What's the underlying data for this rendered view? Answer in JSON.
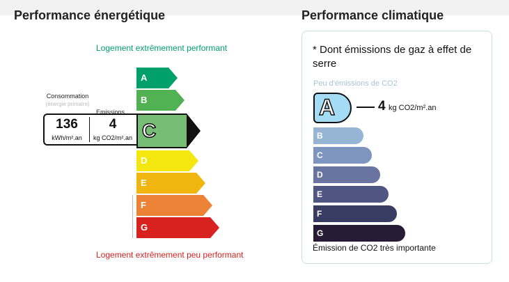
{
  "dpe": {
    "title": "Performance énergétique",
    "top_label": "Logement extrêmement performant",
    "bottom_label": "Logement extrêmement peu performant",
    "consumption_label": "Consommation",
    "consumption_sublabel": "(énergie primaire)",
    "emissions_label": "Emissions",
    "consumption_value": "136",
    "consumption_unit": "kWh/m².an",
    "emissions_value": "4",
    "emissions_unit": "kg CO2/m².an",
    "active_class": "C",
    "classes": [
      {
        "letter": "A",
        "color": "#00a06a"
      },
      {
        "letter": "B",
        "color": "#52b153"
      },
      {
        "letter": "C",
        "color": "#78bd76"
      },
      {
        "letter": "D",
        "color": "#f4e70f"
      },
      {
        "letter": "E",
        "color": "#f0b50f"
      },
      {
        "letter": "F",
        "color": "#eb8235"
      },
      {
        "letter": "G",
        "color": "#d7221f"
      }
    ]
  },
  "ges": {
    "title": "Performance climatique",
    "note": "* Dont émissions de gaz à effet de serre",
    "top_label": "Peu d'émissions de CO2",
    "bottom_label": "Émission de CO2 très importante",
    "active_class": "A",
    "value": "4",
    "unit": "kg CO2/m².an",
    "classes": [
      {
        "letter": "A",
        "color": "#a3dcf4"
      },
      {
        "letter": "B",
        "color": "#96b5d4"
      },
      {
        "letter": "C",
        "color": "#7e95c0"
      },
      {
        "letter": "D",
        "color": "#6a74a0"
      },
      {
        "letter": "E",
        "color": "#4f5681"
      },
      {
        "letter": "F",
        "color": "#393c62"
      },
      {
        "letter": "G",
        "color": "#281b35"
      }
    ]
  }
}
